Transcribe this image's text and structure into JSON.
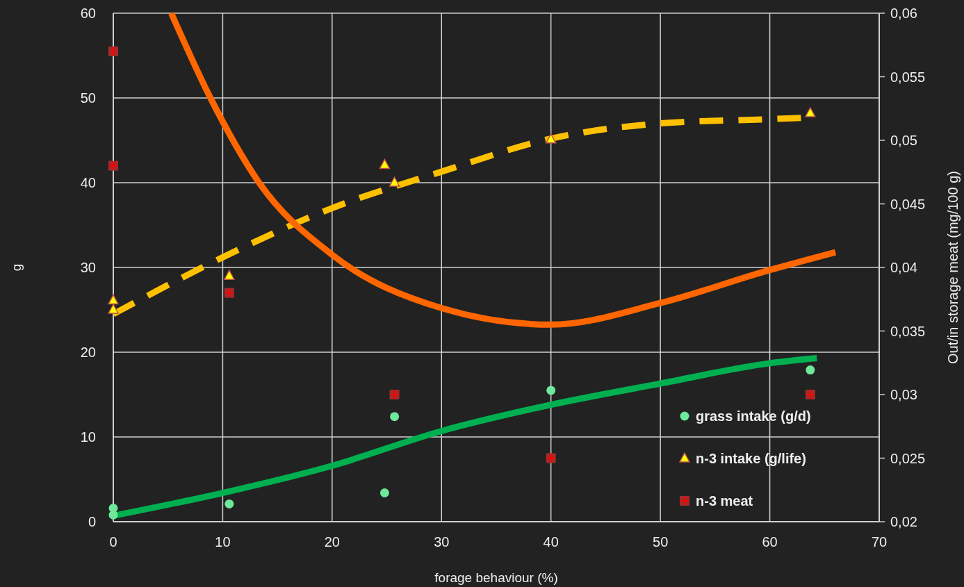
{
  "chart_data": {
    "type": "scatter",
    "xlabel": "forage behaviour (%)",
    "ylabel": "g",
    "y2label": "Out/in storage meat (mg/100 g)",
    "xlim": [
      0,
      70
    ],
    "xticks": [
      0,
      10,
      20,
      30,
      40,
      50,
      60,
      70
    ],
    "ylim": [
      0,
      60
    ],
    "yticks": [
      0,
      10,
      20,
      30,
      40,
      50,
      60
    ],
    "y2lim": [
      0.02,
      0.06
    ],
    "y2ticks": [
      {
        "value": 0.02,
        "label": "0,02"
      },
      {
        "value": 0.025,
        "label": "0,025"
      },
      {
        "value": 0.03,
        "label": "0,03"
      },
      {
        "value": 0.035,
        "label": "0,035"
      },
      {
        "value": 0.04,
        "label": "0,04"
      },
      {
        "value": 0.045,
        "label": "0,045"
      },
      {
        "value": 0.05,
        "label": "0,05"
      },
      {
        "value": 0.055,
        "label": "0,055"
      },
      {
        "value": 0.06,
        "label": "0,06"
      }
    ],
    "grid": true,
    "legend": "bottom right",
    "series": [
      {
        "name": "grass intake (g/d)",
        "marker": "circle",
        "color": "#6ee89a",
        "x": [
          0,
          0,
          10.6,
          24.8,
          25.7,
          40,
          63.7
        ],
        "values": [
          1.6,
          0.8,
          2.1,
          3.4,
          12.4,
          15.5,
          17.9
        ]
      },
      {
        "name": "n-3 intake (g/life)",
        "marker": "triangle",
        "color": "#ffff00",
        "x": [
          0,
          0,
          10.6,
          24.8,
          25.7,
          40,
          63.7
        ],
        "values": [
          26.1,
          25,
          29,
          42.1,
          40,
          45.1,
          48.2
        ]
      },
      {
        "name": "n-3 meat",
        "marker": "square",
        "color": "#a52a2a",
        "axis": "y2",
        "x": [
          0,
          0,
          10.6,
          25.7,
          40,
          63.7
        ],
        "values": [
          0.057,
          0.048,
          0.038,
          0.03,
          0.025,
          0.03
        ]
      },
      {
        "type": "line",
        "color": "#ffc000",
        "line_style": "dashed",
        "x": [
          0,
          10,
          20,
          30,
          40,
          50,
          60,
          63.8
        ],
        "values": [
          24.5,
          31.2,
          37,
          41.3,
          45.2,
          47,
          47.5,
          47.7
        ]
      },
      {
        "type": "line",
        "color": "#ff6600",
        "line_style": "solid",
        "axis": "y2",
        "x": [
          5.3,
          8.9,
          13.3,
          20,
          30,
          40,
          50,
          60,
          66
        ],
        "values": [
          0.06,
          0.0533,
          0.0467,
          0.041,
          0.0368,
          0.0355,
          0.0372,
          0.0398,
          0.0412
        ]
      },
      {
        "type": "line",
        "color": "#00b050",
        "line_style": "solid",
        "x": [
          0,
          10,
          20,
          30,
          40,
          50,
          60,
          64.3
        ],
        "values": [
          0.7,
          3.4,
          6.6,
          10.7,
          13.8,
          16.3,
          18.7,
          19.3
        ]
      }
    ]
  }
}
